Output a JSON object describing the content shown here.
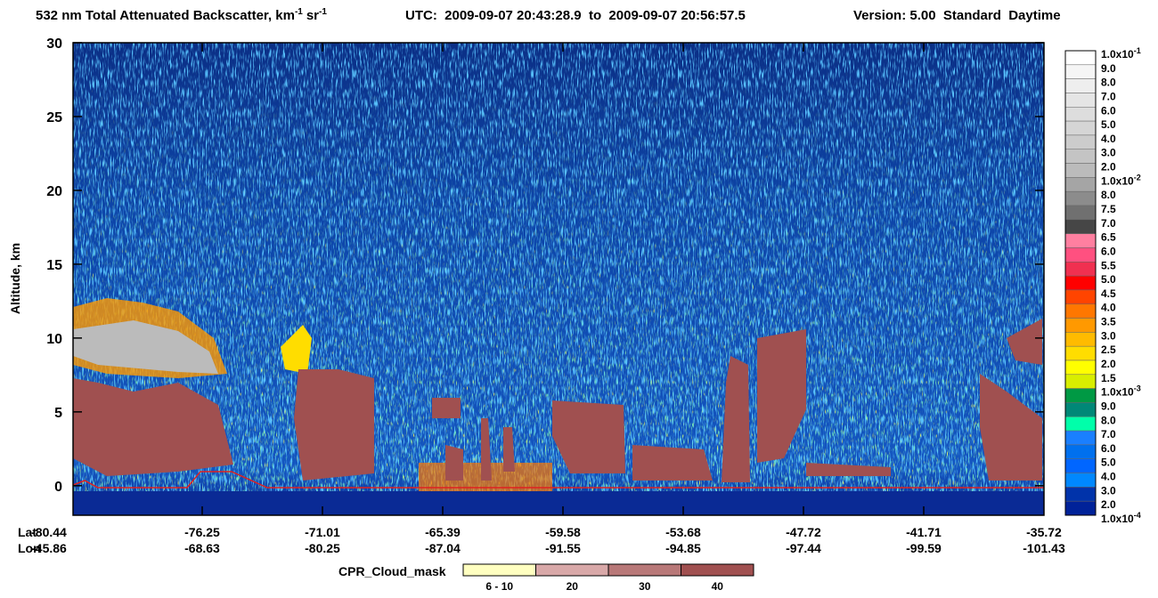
{
  "chart_data": {
    "type": "heatmap",
    "title": {
      "text": "532 nm Total Attenuated Backscatter, km",
      "exp1": "-1",
      "unit2": "sr",
      "exp2": "-1"
    },
    "utc": "UTC:  2009-09-07 20:43:28.9  to  2009-09-07 20:56:57.5",
    "version": "Version: 5.00  Standard  Daytime",
    "y_label": "Altitude, km",
    "ylim": [
      -2,
      30
    ],
    "yticks": [
      0,
      5,
      10,
      15,
      20,
      25,
      30
    ],
    "x_rows": [
      {
        "name": "Lat",
        "labels": [
          "-80.44",
          "-76.25",
          "-71.01",
          "-65.39",
          "-59.58",
          "-53.68",
          "-47.72",
          "-41.71",
          "-35.72"
        ]
      },
      {
        "name": "Lon",
        "labels": [
          "-45.86",
          "-68.63",
          "-80.25",
          "-87.04",
          "-91.55",
          "-94.85",
          "-97.44",
          "-99.59",
          "-101.43"
        ]
      }
    ],
    "colorbar": {
      "labels": [
        {
          "label": "1.0x10",
          "exp": "-1"
        },
        "9.0",
        "8.0",
        "7.0",
        "6.0",
        "5.0",
        "4.0",
        "3.0",
        "2.0",
        {
          "label": "1.0x10",
          "exp": "-2"
        },
        "8.0",
        "7.5",
        "7.0",
        "6.5",
        "6.0",
        "5.5",
        "5.0",
        "4.5",
        "4.0",
        "3.5",
        "3.0",
        "2.5",
        "2.0",
        "1.5",
        {
          "label": "1.0x10",
          "exp": "-3"
        },
        "9.0",
        "8.0",
        "7.0",
        "6.0",
        "5.0",
        "4.0",
        "3.0",
        "2.0",
        {
          "label": "1.0x10",
          "exp": "-4"
        }
      ],
      "colors": [
        "#ffffff",
        "#f5f5f5",
        "#eeeeee",
        "#e5e5e5",
        "#dddddd",
        "#d5d5d5",
        "#cccccc",
        "#c4c4c4",
        "#bbbbbb",
        "#a5a5a5",
        "#8c8c8c",
        "#707070",
        "#464646",
        "#ff7fa0",
        "#ff5080",
        "#f03050",
        "#ff0000",
        "#ff4400",
        "#ff7700",
        "#ff9900",
        "#ffbb00",
        "#ffdd00",
        "#ffff00",
        "#d8ee00",
        "#009944",
        "#008877",
        "#00ffaa",
        "#1a7fff",
        "#0070ee",
        "#0066ff",
        "#0088ff",
        "#0033aa",
        "#002299"
      ]
    },
    "cpr_legend": {
      "title": "CPR_Cloud_mask",
      "labels": [
        "6 - 10",
        "20",
        "30",
        "40"
      ],
      "colors": [
        "#ffffc0",
        "#d8a8a8",
        "#b87878",
        "#a05050"
      ]
    }
  }
}
